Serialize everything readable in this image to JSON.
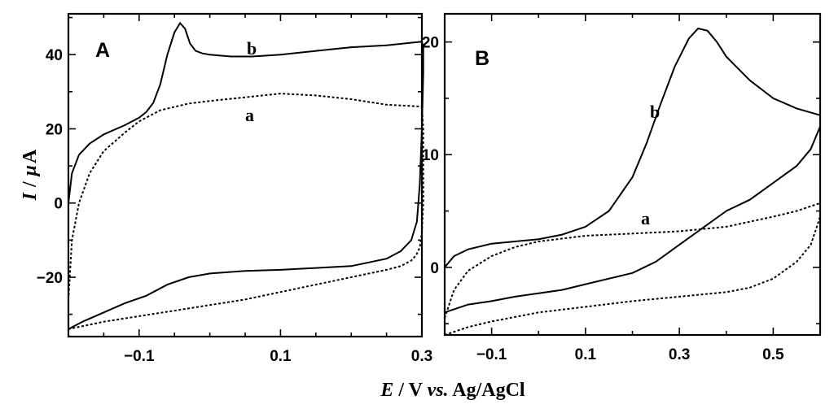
{
  "axis_labels": {
    "y": {
      "I": "I",
      "sep": "/",
      "mu": "μ",
      "unit": "A"
    },
    "x": {
      "E": "E",
      "mid": "/ V ",
      "vs": "vs.",
      "ref": " Ag/AgCl"
    }
  },
  "chart_data": [
    {
      "type": "line",
      "panel": "A",
      "xlim": [
        -0.2,
        0.3
      ],
      "ylim": [
        -36,
        51
      ],
      "xticks": [
        -0.1,
        0.1,
        0.3
      ],
      "xtick_labels": [
        "−0.1",
        "0.1",
        "0.3"
      ],
      "yticks": [
        -20,
        0,
        20,
        40
      ],
      "ytick_labels": [
        "−20",
        "0",
        "20",
        "40"
      ],
      "series": [
        {
          "name": "b",
          "style": "solid",
          "x": [
            -0.2,
            -0.195,
            -0.185,
            -0.17,
            -0.15,
            -0.12,
            -0.1,
            -0.09,
            -0.08,
            -0.07,
            -0.06,
            -0.05,
            -0.042,
            -0.035,
            -0.028,
            -0.02,
            -0.01,
            0.0,
            0.03,
            0.06,
            0.1,
            0.15,
            0.2,
            0.25,
            0.3,
            0.302,
            0.302,
            0.3,
            0.297,
            0.293,
            0.285,
            0.27,
            0.25,
            0.2,
            0.15,
            0.1,
            0.05,
            0.0,
            -0.03,
            -0.06,
            -0.09,
            -0.12,
            -0.15,
            -0.18,
            -0.2
          ],
          "y": [
            0,
            8,
            13,
            16,
            18.5,
            21,
            23,
            24.5,
            27,
            32,
            40,
            46,
            48.5,
            47,
            43,
            41,
            40.3,
            40,
            39.5,
            39.5,
            40,
            41,
            42,
            42.5,
            43.5,
            42,
            35,
            20,
            5,
            -5,
            -10,
            -13,
            -15,
            -17,
            -17.5,
            -18,
            -18.3,
            -19,
            -20,
            -22,
            -25,
            -27,
            -29.5,
            -32,
            -34
          ]
        },
        {
          "name": "a",
          "style": "dashed",
          "x": [
            -0.2,
            -0.195,
            -0.185,
            -0.17,
            -0.15,
            -0.12,
            -0.1,
            -0.07,
            -0.03,
            0.0,
            0.05,
            0.1,
            0.15,
            0.2,
            0.25,
            0.3,
            0.302,
            0.302,
            0.3,
            0.297,
            0.292,
            0.285,
            0.27,
            0.25,
            0.2,
            0.15,
            0.1,
            0.05,
            0.0,
            -0.05,
            -0.1,
            -0.15,
            -0.2
          ],
          "y": [
            -26,
            -10,
            0,
            8,
            14,
            19,
            22,
            25,
            26.8,
            27.5,
            28.5,
            29.5,
            29,
            28,
            26.5,
            26,
            20,
            0,
            -8,
            -12,
            -14,
            -15.5,
            -17,
            -18,
            -20,
            -22,
            -24,
            -26,
            -27.5,
            -29,
            -30.5,
            -32,
            -34
          ]
        }
      ]
    },
    {
      "type": "line",
      "panel": "B",
      "xlim": [
        -0.2,
        0.6
      ],
      "ylim": [
        -6,
        22.5
      ],
      "xticks": [
        -0.1,
        0.1,
        0.3,
        0.5
      ],
      "xtick_labels": [
        "−0.1",
        "0.1",
        "0.3",
        "0.5"
      ],
      "yticks": [
        0,
        10,
        20
      ],
      "ytick_labels": [
        "0",
        "10",
        "20"
      ],
      "series": [
        {
          "name": "b",
          "style": "solid",
          "x": [
            -0.2,
            -0.18,
            -0.15,
            -0.1,
            -0.05,
            0.0,
            0.05,
            0.1,
            0.15,
            0.2,
            0.23,
            0.26,
            0.29,
            0.32,
            0.34,
            0.36,
            0.38,
            0.4,
            0.45,
            0.5,
            0.55,
            0.6,
            0.6,
            0.58,
            0.55,
            0.5,
            0.45,
            0.4,
            0.35,
            0.3,
            0.25,
            0.2,
            0.15,
            0.1,
            0.05,
            0.0,
            -0.05,
            -0.1,
            -0.15,
            -0.2
          ],
          "y": [
            0,
            1,
            1.6,
            2.1,
            2.3,
            2.5,
            2.9,
            3.6,
            5,
            8,
            11,
            14.5,
            17.8,
            20.3,
            21.2,
            21,
            20,
            18.7,
            16.6,
            15,
            14.1,
            13.5,
            12.5,
            10.5,
            9,
            7.5,
            6,
            5,
            3.5,
            2,
            0.5,
            -0.5,
            -1,
            -1.5,
            -2,
            -2.3,
            -2.6,
            -3,
            -3.3,
            -4
          ]
        },
        {
          "name": "a",
          "style": "dashed",
          "x": [
            -0.2,
            -0.18,
            -0.15,
            -0.1,
            -0.05,
            0.0,
            0.1,
            0.2,
            0.3,
            0.4,
            0.5,
            0.55,
            0.6,
            0.6,
            0.58,
            0.55,
            0.5,
            0.45,
            0.4,
            0.3,
            0.2,
            0.1,
            0.0,
            -0.1,
            -0.15,
            -0.2
          ],
          "y": [
            -4.5,
            -2,
            -0.3,
            1,
            1.8,
            2.3,
            2.8,
            3,
            3.2,
            3.6,
            4.5,
            5,
            5.7,
            4.5,
            2,
            0.5,
            -1,
            -1.8,
            -2.2,
            -2.6,
            -3,
            -3.5,
            -4,
            -4.8,
            -5.3,
            -6
          ]
        }
      ]
    }
  ]
}
